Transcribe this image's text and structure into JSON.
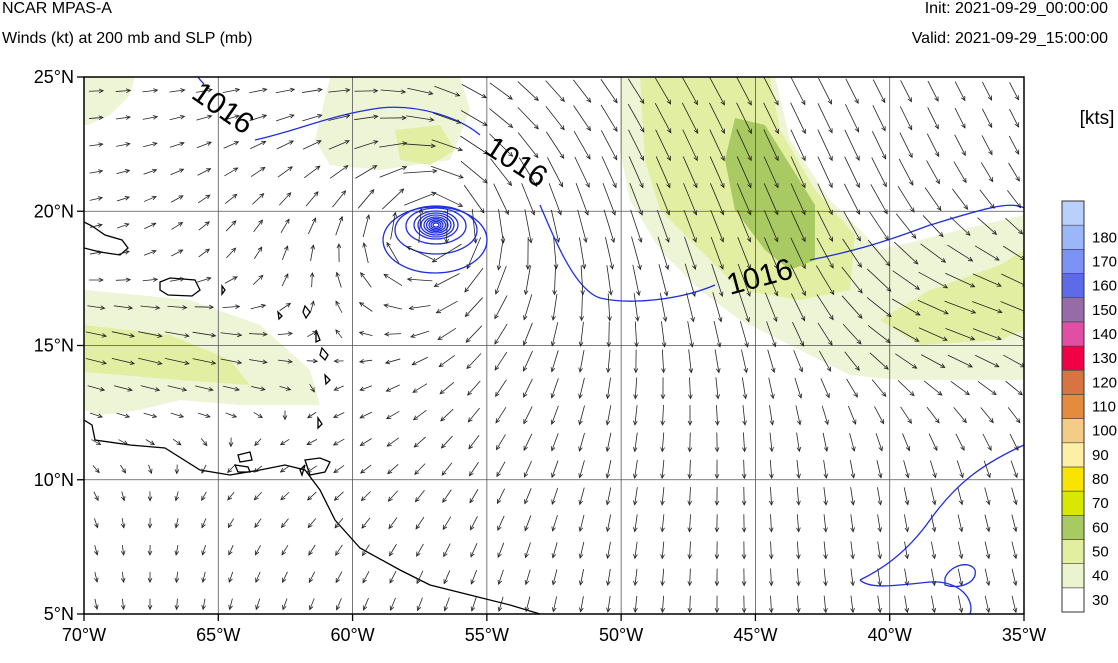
{
  "header": {
    "title": "NCAR MPAS-A",
    "subtitle": "Winds (kt) at 200 mb and SLP (mb)",
    "init": "Init: 2021-09-29_00:00:00",
    "valid": "Valid: 2021-09-29_15:00:00"
  },
  "map": {
    "lon_range": [
      -70,
      -35
    ],
    "lat_range": [
      5,
      25
    ],
    "lon_ticks": [
      {
        "value": -70,
        "label": "70°W"
      },
      {
        "value": -65,
        "label": "65°W"
      },
      {
        "value": -60,
        "label": "60°W"
      },
      {
        "value": -55,
        "label": "55°W"
      },
      {
        "value": -50,
        "label": "50°W"
      },
      {
        "value": -45,
        "label": "45°W"
      },
      {
        "value": -40,
        "label": "40°W"
      },
      {
        "value": -35,
        "label": "35°W"
      }
    ],
    "lat_ticks": [
      {
        "value": 5,
        "label": "5°N"
      },
      {
        "value": 10,
        "label": "10°N"
      },
      {
        "value": 15,
        "label": "15°N"
      },
      {
        "value": 20,
        "label": "20°N"
      },
      {
        "value": 25,
        "label": "25°N"
      }
    ],
    "gridlines": true,
    "isobar_color": "#1f2ee0",
    "isobar_labels": [
      "1016",
      "1016",
      "1016"
    ],
    "storm_center": {
      "lon": -56.8,
      "lat": 19.5
    },
    "wind_fill_colors": {
      "30-40": "#eef4d6",
      "40-50": "#e2efa2",
      "50-60": "#a9c962"
    }
  },
  "colorbar": {
    "unit_label": "[kts]",
    "levels": [
      {
        "label": "30",
        "color": "#ffffff"
      },
      {
        "label": "40",
        "color": "#ebf3cf"
      },
      {
        "label": "50",
        "color": "#e2efa0"
      },
      {
        "label": "60",
        "color": "#a9c962"
      },
      {
        "label": "70",
        "color": "#d9e800"
      },
      {
        "label": "80",
        "color": "#f9e400"
      },
      {
        "label": "90",
        "color": "#fdf0a6"
      },
      {
        "label": "100",
        "color": "#f3cc86"
      },
      {
        "label": "110",
        "color": "#e58b3d"
      },
      {
        "label": "120",
        "color": "#d77441"
      },
      {
        "label": "130",
        "color": "#ef0047"
      },
      {
        "label": "140",
        "color": "#e24ea4"
      },
      {
        "label": "150",
        "color": "#966ca8"
      },
      {
        "label": "160",
        "color": "#5d6be8"
      },
      {
        "label": "170",
        "color": "#7c93f6"
      },
      {
        "label": "180",
        "color": "#9ab8f8"
      },
      {
        "label": "",
        "color": "#b9d0fb"
      }
    ]
  }
}
